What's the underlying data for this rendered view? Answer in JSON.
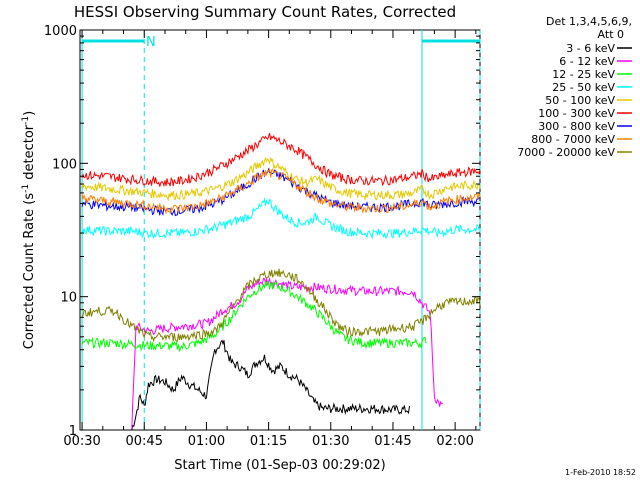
{
  "chart_data": {
    "type": "line",
    "title": "HESSI Observing Summary Count Rates, Corrected",
    "xlabel": "Start Time (01-Sep-03 00:29:02)",
    "ylabel": "Corrected Count Rate (s",
    "ylabel_sup1": "-1",
    "ylabel_mid": " detector",
    "ylabel_sup2": "-1",
    "ylabel_end": ")",
    "y_scale": "log",
    "ylim": [
      1,
      1000
    ],
    "xlim_minutes_after_0030": [
      -0.5,
      96
    ],
    "x_ticks": [
      {
        "t": 0,
        "label": "00:30"
      },
      {
        "t": 15,
        "label": "00:45"
      },
      {
        "t": 30,
        "label": "01:00"
      },
      {
        "t": 45,
        "label": "01:15"
      },
      {
        "t": 60,
        "label": "01:30"
      },
      {
        "t": 75,
        "label": "01:45"
      },
      {
        "t": 90,
        "label": "02:00"
      }
    ],
    "y_tick_labels": [
      {
        "v": 1,
        "label": "1"
      },
      {
        "v": 10,
        "label": "10"
      },
      {
        "v": 100,
        "label": "100"
      },
      {
        "v": 1000,
        "label": "1000"
      }
    ],
    "legend_header": [
      "Det 1,3,4,5,6,9,",
      "Att 0"
    ],
    "legend_position": "right",
    "annotations": {
      "night_marker": "N",
      "timestamp": "1-Feb-2010 18:52"
    },
    "night_intervals": [
      {
        "start": 0,
        "end": 15
      },
      {
        "start": 82,
        "end": 96
      }
    ],
    "series": [
      {
        "name": "3 - 6 keV",
        "color": "#000000",
        "points": [
          [
            12,
            1
          ],
          [
            13,
            1.3
          ],
          [
            14,
            1.8
          ],
          [
            15,
            1.5
          ],
          [
            16,
            2.2
          ],
          [
            18,
            2.4
          ],
          [
            20,
            2.3
          ],
          [
            22,
            2.0
          ],
          [
            24,
            2.5
          ],
          [
            26,
            2.2
          ],
          [
            28,
            2.0
          ],
          [
            30,
            1.8
          ],
          [
            32,
            4.0
          ],
          [
            34,
            4.6
          ],
          [
            36,
            3.2
          ],
          [
            38,
            3.0
          ],
          [
            40,
            2.6
          ],
          [
            42,
            3.2
          ],
          [
            44,
            3.5
          ],
          [
            46,
            2.8
          ],
          [
            48,
            3.0
          ],
          [
            50,
            2.6
          ],
          [
            52,
            2.4
          ],
          [
            54,
            2.0
          ],
          [
            56,
            1.6
          ],
          [
            58,
            1.45
          ],
          [
            60,
            1.45
          ],
          [
            65,
            1.45
          ],
          [
            70,
            1.45
          ],
          [
            75,
            1.42
          ],
          [
            79,
            1.42
          ]
        ]
      },
      {
        "name": "6 - 12 keV",
        "color": "#ff00ff",
        "points": [
          [
            12,
            1
          ],
          [
            13,
            6
          ],
          [
            16,
            5.5
          ],
          [
            20,
            5.8
          ],
          [
            24,
            6.0
          ],
          [
            28,
            6.2
          ],
          [
            30,
            6.3
          ],
          [
            32,
            7.0
          ],
          [
            34,
            8.0
          ],
          [
            36,
            8.5
          ],
          [
            38,
            9.5
          ],
          [
            40,
            11.5
          ],
          [
            42,
            12.5
          ],
          [
            44,
            13.2
          ],
          [
            46,
            13.0
          ],
          [
            48,
            12.5
          ],
          [
            50,
            12.0
          ],
          [
            52,
            11.8
          ],
          [
            56,
            11.8
          ],
          [
            60,
            11.5
          ],
          [
            64,
            11.2
          ],
          [
            68,
            11.0
          ],
          [
            72,
            11.0
          ],
          [
            76,
            11.0
          ],
          [
            79,
            11.0
          ],
          [
            80,
            10.8
          ],
          [
            84,
            7.5
          ],
          [
            85,
            1.8
          ],
          [
            86,
            1.6
          ],
          [
            87,
            1.5
          ]
        ]
      },
      {
        "name": "12 - 25 keV",
        "color": "#00ff00",
        "points": [
          [
            0,
            4.5
          ],
          [
            4,
            4.5
          ],
          [
            8,
            4.5
          ],
          [
            12,
            4.4
          ],
          [
            16,
            4.3
          ],
          [
            20,
            4.3
          ],
          [
            24,
            4.2
          ],
          [
            28,
            4.5
          ],
          [
            30,
            4.8
          ],
          [
            32,
            5.2
          ],
          [
            34,
            6.0
          ],
          [
            36,
            7.0
          ],
          [
            38,
            8.5
          ],
          [
            40,
            10.0
          ],
          [
            42,
            11.2
          ],
          [
            44,
            12.0
          ],
          [
            46,
            12.2
          ],
          [
            48,
            11.8
          ],
          [
            50,
            11.0
          ],
          [
            52,
            10.0
          ],
          [
            54,
            9.0
          ],
          [
            56,
            8.0
          ],
          [
            58,
            7.0
          ],
          [
            60,
            6.0
          ],
          [
            62,
            5.2
          ],
          [
            64,
            4.8
          ],
          [
            68,
            4.5
          ],
          [
            72,
            4.5
          ],
          [
            76,
            4.5
          ],
          [
            80,
            4.5
          ],
          [
            82,
            4.5
          ],
          [
            83,
            4.8
          ]
        ]
      },
      {
        "name": "25 - 50 keV",
        "color": "#00ffff",
        "points": [
          [
            0,
            32
          ],
          [
            6,
            31
          ],
          [
            12,
            31
          ],
          [
            16,
            30
          ],
          [
            20,
            30
          ],
          [
            24,
            30
          ],
          [
            28,
            31
          ],
          [
            32,
            33
          ],
          [
            36,
            36
          ],
          [
            40,
            40
          ],
          [
            42,
            44
          ],
          [
            44,
            50
          ],
          [
            45,
            53
          ],
          [
            46,
            48
          ],
          [
            48,
            42
          ],
          [
            50,
            38
          ],
          [
            52,
            36
          ],
          [
            54,
            36
          ],
          [
            56,
            39
          ],
          [
            57,
            40
          ],
          [
            58,
            37
          ],
          [
            60,
            34
          ],
          [
            64,
            31
          ],
          [
            68,
            30
          ],
          [
            72,
            30
          ],
          [
            76,
            30
          ],
          [
            80,
            31
          ],
          [
            82,
            32
          ],
          [
            86,
            30
          ],
          [
            90,
            32
          ],
          [
            94,
            32
          ],
          [
            96,
            32
          ]
        ]
      },
      {
        "name": "50 - 100 keV",
        "color": "#e6c800",
        "points": [
          [
            0,
            68
          ],
          [
            6,
            65
          ],
          [
            12,
            62
          ],
          [
            16,
            60
          ],
          [
            20,
            58
          ],
          [
            24,
            58
          ],
          [
            28,
            60
          ],
          [
            32,
            64
          ],
          [
            36,
            72
          ],
          [
            40,
            85
          ],
          [
            42,
            95
          ],
          [
            44,
            105
          ],
          [
            45,
            110
          ],
          [
            46,
            100
          ],
          [
            48,
            92
          ],
          [
            50,
            82
          ],
          [
            52,
            75
          ],
          [
            54,
            72
          ],
          [
            56,
            75
          ],
          [
            57,
            76
          ],
          [
            58,
            72
          ],
          [
            60,
            66
          ],
          [
            64,
            60
          ],
          [
            68,
            58
          ],
          [
            72,
            58
          ],
          [
            76,
            58
          ],
          [
            80,
            60
          ],
          [
            82,
            64
          ],
          [
            84,
            58
          ],
          [
            88,
            66
          ],
          [
            92,
            68
          ],
          [
            96,
            70
          ]
        ]
      },
      {
        "name": "100 - 300 keV",
        "color": "#ff0000",
        "points": [
          [
            0,
            82
          ],
          [
            6,
            80
          ],
          [
            12,
            76
          ],
          [
            16,
            74
          ],
          [
            20,
            72
          ],
          [
            24,
            74
          ],
          [
            28,
            80
          ],
          [
            32,
            90
          ],
          [
            36,
            105
          ],
          [
            40,
            125
          ],
          [
            42,
            138
          ],
          [
            44,
            150
          ],
          [
            45,
            158
          ],
          [
            46,
            155
          ],
          [
            48,
            145
          ],
          [
            50,
            135
          ],
          [
            52,
            125
          ],
          [
            54,
            112
          ],
          [
            56,
            100
          ],
          [
            58,
            90
          ],
          [
            60,
            82
          ],
          [
            64,
            76
          ],
          [
            68,
            74
          ],
          [
            72,
            74
          ],
          [
            76,
            76
          ],
          [
            80,
            80
          ],
          [
            82,
            84
          ],
          [
            84,
            76
          ],
          [
            88,
            82
          ],
          [
            92,
            86
          ],
          [
            96,
            88
          ]
        ]
      },
      {
        "name": "300 - 800 keV",
        "color": "#0000ff",
        "points": [
          [
            0,
            50
          ],
          [
            6,
            48
          ],
          [
            12,
            47
          ],
          [
            16,
            45
          ],
          [
            20,
            44
          ],
          [
            24,
            44
          ],
          [
            28,
            46
          ],
          [
            32,
            50
          ],
          [
            36,
            58
          ],
          [
            40,
            70
          ],
          [
            42,
            78
          ],
          [
            44,
            84
          ],
          [
            45,
            86
          ],
          [
            46,
            84
          ],
          [
            48,
            80
          ],
          [
            50,
            74
          ],
          [
            52,
            68
          ],
          [
            54,
            62
          ],
          [
            56,
            58
          ],
          [
            58,
            54
          ],
          [
            60,
            51
          ],
          [
            64,
            48
          ],
          [
            68,
            47
          ],
          [
            72,
            47
          ],
          [
            76,
            48
          ],
          [
            80,
            50
          ],
          [
            82,
            52
          ],
          [
            84,
            48
          ],
          [
            88,
            50
          ],
          [
            92,
            52
          ],
          [
            96,
            52
          ]
        ]
      },
      {
        "name": "800 - 7000 keV",
        "color": "#ff8000",
        "points": [
          [
            0,
            55
          ],
          [
            6,
            52
          ],
          [
            12,
            50
          ],
          [
            16,
            48
          ],
          [
            20,
            46
          ],
          [
            24,
            46
          ],
          [
            28,
            48
          ],
          [
            32,
            52
          ],
          [
            36,
            60
          ],
          [
            40,
            70
          ],
          [
            42,
            78
          ],
          [
            44,
            83
          ],
          [
            45,
            85
          ],
          [
            46,
            84
          ],
          [
            48,
            80
          ],
          [
            50,
            74
          ],
          [
            52,
            68
          ],
          [
            54,
            62
          ],
          [
            56,
            57
          ],
          [
            58,
            53
          ],
          [
            60,
            50
          ],
          [
            64,
            47
          ],
          [
            68,
            46
          ],
          [
            72,
            46
          ],
          [
            76,
            47
          ],
          [
            80,
            49
          ],
          [
            82,
            52
          ],
          [
            84,
            47
          ],
          [
            88,
            52
          ],
          [
            92,
            55
          ],
          [
            96,
            56
          ]
        ]
      },
      {
        "name": "7000 - 20000 keV",
        "color": "#808000",
        "points": [
          [
            0,
            7.5
          ],
          [
            4,
            7.8
          ],
          [
            8,
            7.8
          ],
          [
            12,
            6.0
          ],
          [
            16,
            5.0
          ],
          [
            20,
            5.0
          ],
          [
            24,
            5.0
          ],
          [
            28,
            5.2
          ],
          [
            32,
            5.5
          ],
          [
            34,
            6.5
          ],
          [
            36,
            8.0
          ],
          [
            38,
            10.0
          ],
          [
            40,
            12.0
          ],
          [
            42,
            13.5
          ],
          [
            44,
            14.5
          ],
          [
            46,
            15.2
          ],
          [
            48,
            15.0
          ],
          [
            50,
            14.5
          ],
          [
            52,
            13.5
          ],
          [
            54,
            12.0
          ],
          [
            56,
            10.0
          ],
          [
            58,
            8.5
          ],
          [
            60,
            7.0
          ],
          [
            62,
            6.0
          ],
          [
            64,
            5.5
          ],
          [
            68,
            5.5
          ],
          [
            72,
            5.5
          ],
          [
            76,
            5.8
          ],
          [
            80,
            6.0
          ],
          [
            82,
            6.5
          ],
          [
            84,
            7.5
          ],
          [
            86,
            8.5
          ],
          [
            88,
            9.0
          ],
          [
            92,
            9.2
          ],
          [
            96,
            9.3
          ]
        ]
      }
    ]
  }
}
